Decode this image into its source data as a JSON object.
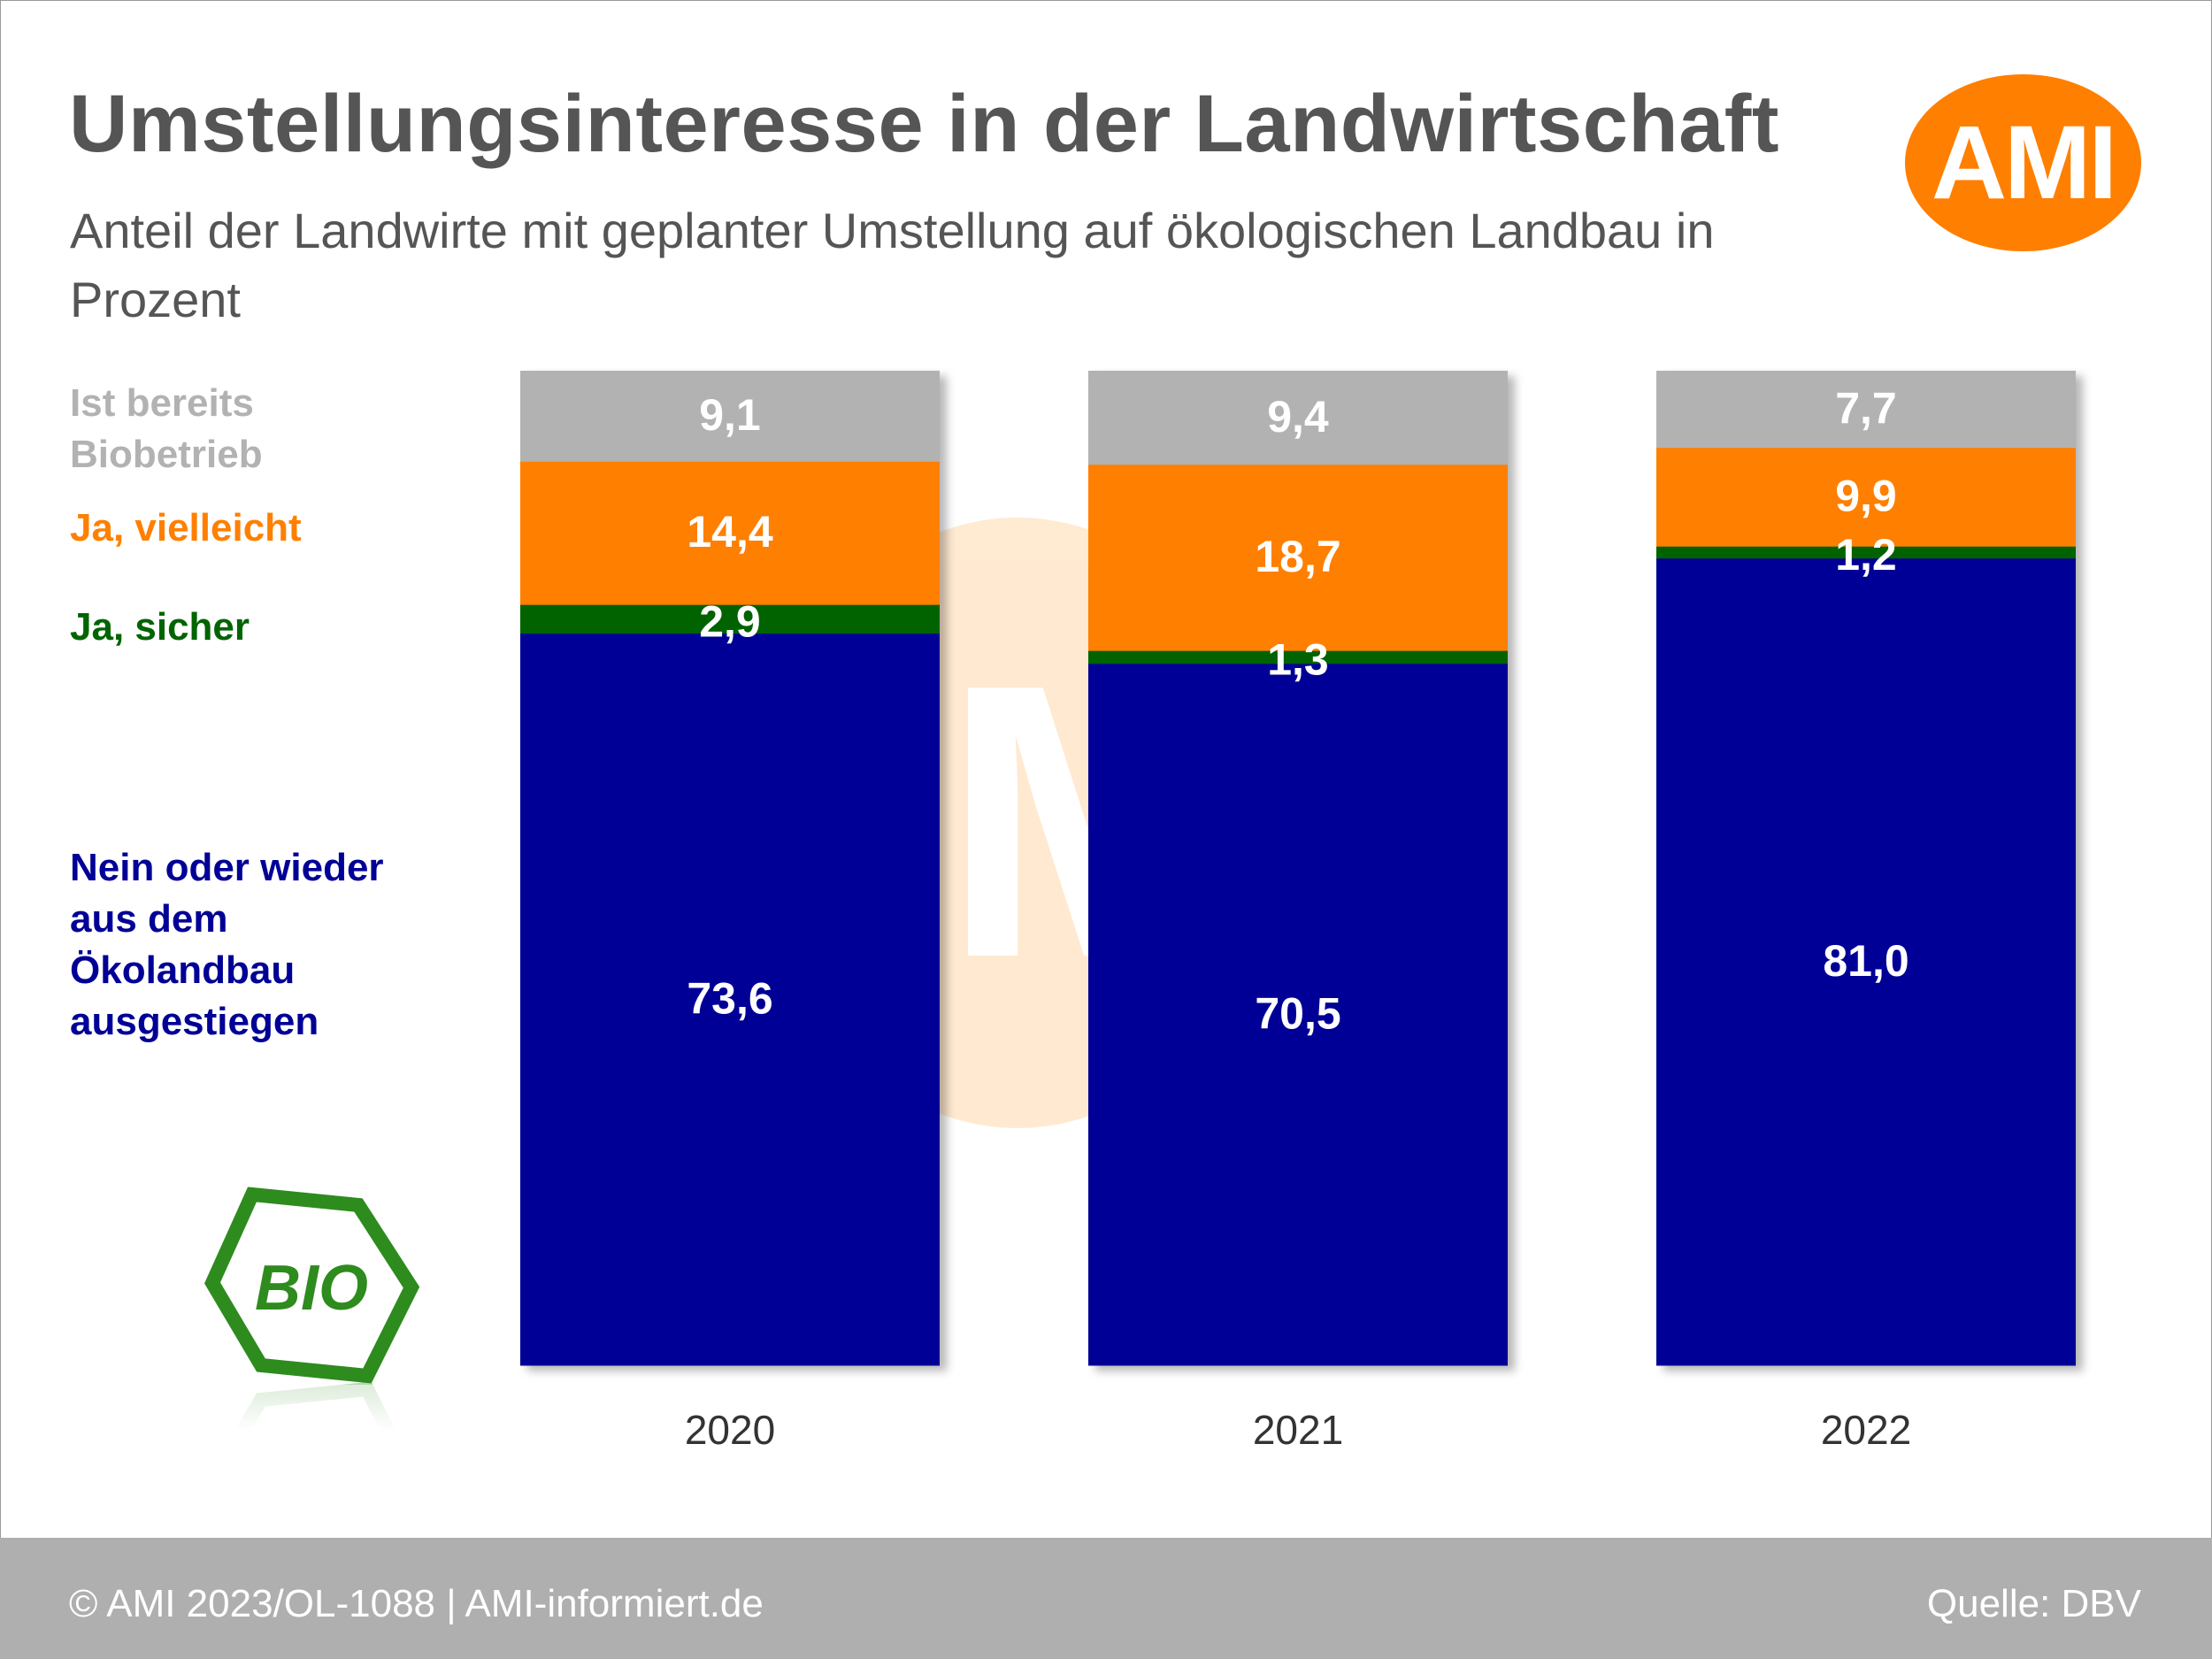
{
  "header": {
    "title": "Umstellungsinteresse in der Landwirtschaft",
    "subtitle": "Anteil der Landwirte mit geplanter Umstellung auf ökologischen Landbau in Prozent",
    "logo_text": "AMI"
  },
  "legend": {
    "biobetrieb": "Ist bereits\nBiobetrieb",
    "vielleicht": "Ja, vielleicht",
    "sicher": "Ja, sicher",
    "nein": "Nein oder wieder\naus dem\nÖkolandbau\nausgestiegen"
  },
  "badge": {
    "text": "BIO",
    "icon": "bio-hexagon-icon"
  },
  "footer": {
    "left": "© AMI 2023/OL-1088 | AMI-informiert.de",
    "right": "Quelle: DBV"
  },
  "colors": {
    "nein": "#000096",
    "sicher": "#006400",
    "vielleicht": "#ff7f00",
    "biobetrieb": "#b2b2b2",
    "accent": "#ff7f00",
    "footer": "#afafaf"
  },
  "chart_data": {
    "type": "bar",
    "stacked": true,
    "categories": [
      "2020",
      "2021",
      "2022"
    ],
    "series": [
      {
        "name": "Nein oder wieder aus dem Ökolandbau ausgestiegen",
        "key": "nein",
        "values": [
          73.6,
          70.5,
          81.0
        ],
        "labels": [
          "73,6",
          "70,5",
          "81,0"
        ]
      },
      {
        "name": "Ja, sicher",
        "key": "sicher",
        "values": [
          2.9,
          1.3,
          1.2
        ],
        "labels": [
          "2,9",
          "1,3",
          "1,2"
        ]
      },
      {
        "name": "Ja, vielleicht",
        "key": "vielleicht",
        "values": [
          14.4,
          18.7,
          9.9
        ],
        "labels": [
          "14,4",
          "18,7",
          "9,9"
        ]
      },
      {
        "name": "Ist bereits Biobetrieb",
        "key": "biobetrieb",
        "values": [
          9.1,
          9.4,
          7.7
        ],
        "labels": [
          "9,1",
          "9,4",
          "7,7"
        ]
      }
    ],
    "legend_position": "left",
    "grid": false
  }
}
